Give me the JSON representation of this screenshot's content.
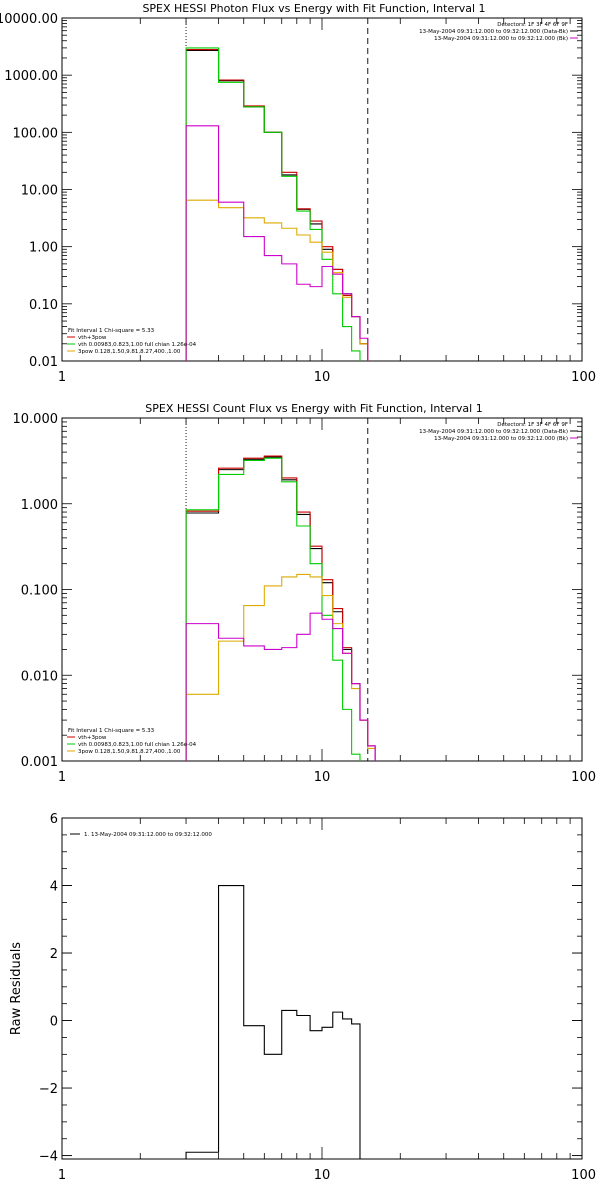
{
  "chart_data": [
    {
      "type": "line",
      "title": "SPEX HESSI Photon Flux vs Energy with Fit Function, Interval 1",
      "xscale": "log",
      "yscale": "log",
      "xlim": [
        1,
        100
      ],
      "ylim": [
        0.01,
        10000
      ],
      "xticks": [
        {
          "v": 1,
          "label": "1"
        },
        {
          "v": 10,
          "label": "10"
        },
        {
          "v": 100,
          "label": "100"
        }
      ],
      "yticks": [
        {
          "v": 10000,
          "label": "10000.00"
        },
        {
          "v": 1000,
          "label": "1000.00"
        },
        {
          "v": 100,
          "label": "100.00"
        },
        {
          "v": 10,
          "label": "10.00"
        },
        {
          "v": 1,
          "label": "1.00"
        },
        {
          "v": 0.1,
          "label": "0.10"
        },
        {
          "v": 0.01,
          "label": "0.01"
        }
      ],
      "vlines": [
        {
          "x": 3,
          "style": "dotted"
        },
        {
          "x": 15,
          "style": "dashed"
        }
      ],
      "legend_top_right": [
        {
          "text": "Detectors: 1F 3F 4F 6F 9F",
          "color": ""
        },
        {
          "text": "13-May-2004 09:31:12.000 to 09:32:12.000 (Data-Bk)",
          "color": "#000000"
        },
        {
          "text": "13-May-2004 09:31:12.000 to 09:32:12.000 (Bk)",
          "color": "#cc00cc"
        }
      ],
      "legend_bottom_left": [
        {
          "text": "Fit Interval 1    Chi-square = 5.33",
          "color": ""
        },
        {
          "text": "vth+3pow",
          "color": "#cc0000"
        },
        {
          "text": "vth 0.00983,0.823,1.00   full chian 1.26e-04",
          "color": "#00cc00"
        },
        {
          "text": "3pow 0.128,1.50,9.81,8.27,400.,1.00",
          "color": "#ddaa00"
        }
      ],
      "bin_edges": [
        3,
        4,
        5,
        6,
        7,
        8,
        9,
        10,
        11,
        12,
        13,
        14,
        15,
        16,
        17,
        18
      ],
      "series": [
        {
          "name": "",
          "color": "#000000",
          "values": [
            2700,
            800,
            280,
            100,
            18,
            4.5,
            2.5,
            0.9,
            0.4,
            0.15,
            0.06,
            0.02,
            null,
            null,
            null
          ]
        },
        {
          "name": "vth+3pow",
          "color": "#cc0000",
          "values": [
            2800,
            820,
            290,
            100,
            20,
            4.6,
            2.8,
            1.0,
            0.4,
            0.14,
            0.06,
            0.02,
            null,
            null,
            null
          ]
        },
        {
          "name": "vth 0.00983,0.823,1.00   full chian 1.26e-04",
          "color": "#00cc00",
          "values": [
            3000,
            750,
            280,
            100,
            17,
            4.2,
            2.0,
            0.6,
            0.15,
            0.04,
            0.015,
            null,
            null,
            null,
            null
          ]
        },
        {
          "name": "3pow 0.128,1.50,9.81,8.27,400.,1.00",
          "color": "#ddaa00",
          "values": [
            6.5,
            4.8,
            3.2,
            2.6,
            2.1,
            1.6,
            1.2,
            0.8,
            0.35,
            0.13,
            0.06,
            0.02,
            null,
            null,
            null
          ]
        },
        {
          "name": "13-May-2004 09:31:12.000 to 09:32:12.000 (Bk)",
          "color": "#cc00cc",
          "values": [
            130,
            6,
            1.5,
            0.7,
            0.5,
            0.22,
            0.2,
            0.45,
            0.33,
            0.15,
            0.06,
            0.025,
            null,
            null,
            null
          ]
        }
      ]
    },
    {
      "type": "line",
      "title": "SPEX HESSI Count Flux vs Energy with Fit Function, Interval 1",
      "xscale": "log",
      "yscale": "log",
      "xlim": [
        1,
        100
      ],
      "ylim": [
        0.001,
        10
      ],
      "xticks": [
        {
          "v": 1,
          "label": "1"
        },
        {
          "v": 10,
          "label": "10"
        },
        {
          "v": 100,
          "label": "100"
        }
      ],
      "yticks": [
        {
          "v": 10,
          "label": "10.000"
        },
        {
          "v": 1,
          "label": "1.000"
        },
        {
          "v": 0.1,
          "label": "0.100"
        },
        {
          "v": 0.01,
          "label": "0.010"
        },
        {
          "v": 0.001,
          "label": "0.001"
        }
      ],
      "vlines": [
        {
          "x": 3,
          "style": "dotted"
        },
        {
          "x": 15,
          "style": "dashed"
        }
      ],
      "legend_top_right": [
        {
          "text": "Detectors: 1F 3F 4F 6F 9F",
          "color": ""
        },
        {
          "text": "13-May-2004 09:31:12.000 to 09:32:12.000 (Data-Bk)",
          "color": "#000000"
        },
        {
          "text": "13-May-2004 09:31:12.000 to 09:32:12.000 (Bk)",
          "color": "#cc00cc"
        }
      ],
      "legend_bottom_left": [
        {
          "text": "Fit Interval 1    Chi-square = 5.33",
          "color": ""
        },
        {
          "text": "vth+3pow",
          "color": "#cc0000"
        },
        {
          "text": "vth 0.00983,0.823,1.00   full chian 1.26e-04",
          "color": "#00cc00"
        },
        {
          "text": "3pow 0.128,1.50,9.81,8.27,400.,1.00",
          "color": "#ddaa00"
        }
      ],
      "bin_edges": [
        3,
        4,
        5,
        6,
        7,
        8,
        9,
        10,
        11,
        12,
        13,
        14,
        15,
        16,
        17,
        18
      ],
      "series": [
        {
          "name": "",
          "color": "#000000",
          "values": [
            0.78,
            2.5,
            3.3,
            3.5,
            1.9,
            0.75,
            0.3,
            0.12,
            0.055,
            0.02,
            0.008,
            0.003,
            0.0015,
            null,
            null
          ]
        },
        {
          "name": "vth+3pow",
          "color": "#cc0000",
          "values": [
            0.82,
            2.6,
            3.4,
            3.6,
            2.0,
            0.8,
            0.32,
            0.13,
            0.06,
            0.021,
            0.008,
            0.003,
            0.0015,
            null,
            null
          ]
        },
        {
          "name": "vth 0.00983,0.823,1.00   full chian 1.26e-04",
          "color": "#00cc00",
          "values": [
            0.85,
            2.2,
            3.2,
            3.4,
            1.8,
            0.55,
            0.2,
            0.05,
            0.015,
            0.004,
            0.0012,
            null,
            null,
            null,
            null
          ]
        },
        {
          "name": "3pow 0.128,1.50,9.81,8.27,400.,1.00",
          "color": "#ddaa00",
          "values": [
            0.006,
            0.025,
            0.065,
            0.11,
            0.14,
            0.15,
            0.14,
            0.085,
            0.04,
            0.018,
            0.007,
            0.003,
            0.0014,
            null,
            null
          ]
        },
        {
          "name": "13-May-2004 09:31:12.000 to 09:32:12.000 (Bk)",
          "color": "#cc00cc",
          "values": [
            0.04,
            0.027,
            0.022,
            0.02,
            0.021,
            0.03,
            0.053,
            0.045,
            0.035,
            0.018,
            0.008,
            0.003,
            0.0015,
            null,
            null
          ]
        }
      ]
    },
    {
      "type": "line",
      "title": "",
      "xscale": "log",
      "yscale": "linear",
      "xlim": [
        1,
        100
      ],
      "ylim": [
        -4.1,
        6
      ],
      "ylabel": "Raw Residuals",
      "xticks": [
        {
          "v": 1,
          "label": "1"
        },
        {
          "v": 10,
          "label": "10"
        },
        {
          "v": 100,
          "label": "100"
        }
      ],
      "yticks": [
        {
          "v": 6,
          "label": "6"
        },
        {
          "v": 4,
          "label": "4"
        },
        {
          "v": 2,
          "label": "2"
        },
        {
          "v": 0,
          "label": "0"
        },
        {
          "v": -2,
          "label": "−2"
        },
        {
          "v": -4,
          "label": "−4"
        }
      ],
      "vlines": [],
      "legend_top_right": [],
      "legend_bottom_left": [],
      "legend_top_left": [
        {
          "text": "1. 13-May-2004 09:31:12.000 to 09:32:12.000",
          "color": "#000000"
        }
      ],
      "bin_edges": [
        3,
        4,
        5,
        6,
        7,
        8,
        9,
        10,
        11,
        12,
        13,
        14,
        15
      ],
      "series": [
        {
          "name": "1. 13-May-2004 09:31:12.000 to 09:32:12.000",
          "color": "#000000",
          "values": [
            -3.9,
            4.0,
            -0.15,
            -1.0,
            0.3,
            0.15,
            -0.3,
            -0.2,
            0.25,
            0.05,
            -0.1,
            null
          ]
        }
      ]
    }
  ]
}
